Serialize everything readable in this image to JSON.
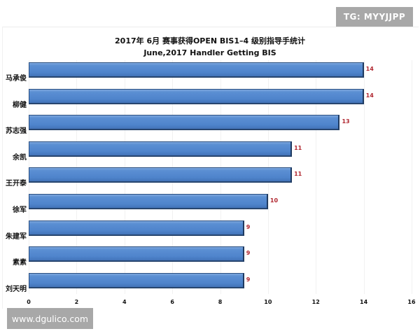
{
  "chart_data": {
    "type": "bar",
    "orientation": "horizontal",
    "title": "2017年 6月 赛事获得OPEN BIS1–4 级别指导手统计",
    "subtitle": "June,2017 Handler Getting BIS",
    "xlabel": "",
    "ylabel": "",
    "categories": [
      "马承俊",
      "柳健",
      "苏志强",
      "余凯",
      "王开泰",
      "徐军",
      "朱建军",
      "素素",
      "刘天明"
    ],
    "values": [
      14,
      14,
      13,
      11,
      11,
      10,
      9,
      9,
      9
    ],
    "xlim": [
      0,
      16
    ],
    "xticks": [
      "0",
      "2",
      "4",
      "6",
      "8",
      "10",
      "12",
      "14",
      "16"
    ],
    "grid": true,
    "data_labels": true,
    "bar_color": "#4f84cc",
    "label_color": "#b0262f",
    "legend": null
  },
  "watermarks": {
    "top_right": "TG: MYYJJPP",
    "bottom_left": "www.dgulico.com"
  }
}
